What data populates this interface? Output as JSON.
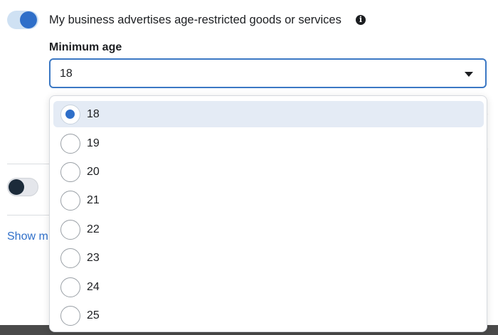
{
  "setting": {
    "advertises_label": "My business advertises age-restricted goods or services",
    "advertises_enabled": true,
    "info_icon": "info-icon",
    "info_glyph": "i"
  },
  "min_age": {
    "label": "Minimum age",
    "selected_value": "18",
    "caret_icon": "caret-down-icon"
  },
  "dropdown": {
    "options": [
      {
        "label": "18",
        "selected": true
      },
      {
        "label": "19",
        "selected": false
      },
      {
        "label": "20",
        "selected": false
      },
      {
        "label": "21",
        "selected": false
      },
      {
        "label": "22",
        "selected": false
      },
      {
        "label": "23",
        "selected": false
      },
      {
        "label": "24",
        "selected": false
      },
      {
        "label": "25",
        "selected": false
      }
    ]
  },
  "second_toggle": {
    "enabled": false
  },
  "show_more": {
    "visible_text": "Show m"
  },
  "colors": {
    "accent": "#2f6fc9",
    "selected_row": "#e4ebf5"
  }
}
